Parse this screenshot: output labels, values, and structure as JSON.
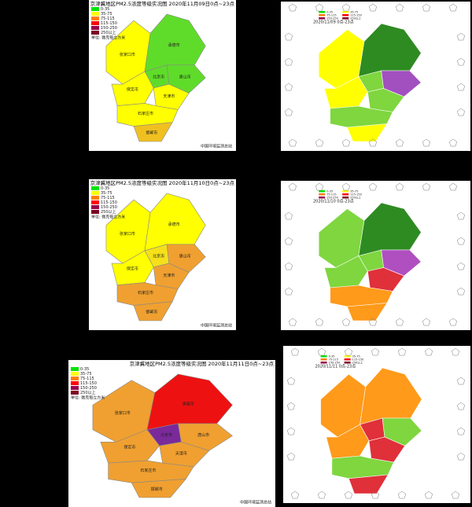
{
  "legend": [
    {
      "label": "0-35",
      "color": "#00e400"
    },
    {
      "label": "35-75",
      "color": "#ffff00"
    },
    {
      "label": "75-115",
      "color": "#ff7e00"
    },
    {
      "label": "115-150",
      "color": "#ff0000"
    },
    {
      "label": "150-250",
      "color": "#99004c"
    },
    {
      "label": "250以上",
      "color": "#7e0023"
    }
  ],
  "unit": "单位: 微克每立方米",
  "credit": "中国环境监测总站",
  "region_labels": [
    "张家口市",
    "承德市",
    "北京市",
    "唐山市",
    "保定市",
    "天津市",
    "石家庄市",
    "邯郸市"
  ],
  "panels": [
    {
      "kind": "level",
      "title": "京津冀地区PM2.5浓度等级实况图 2020年11月09日0点~23点",
      "region_colors": [
        "#ffff00",
        "#5fdc2a",
        "#5fdc2a",
        "#5fdc2a",
        "#ffff00",
        "#ffff00",
        "#ffff00",
        "#f0c020"
      ]
    },
    {
      "kind": "model",
      "caption": "2020/11/09 0点-23点",
      "region_colors": [
        "#ffff00",
        "#2e8b22",
        "#7fd63f",
        "#a24fc0",
        "#ffff00",
        "#7fd63f",
        "#7fd63f",
        "#ffff00"
      ]
    },
    {
      "kind": "level",
      "title": "京津冀地区PM2.5浓度等级实况图 2020年11月10日0点~23点",
      "region_colors": [
        "#ffff00",
        "#ffff00",
        "#f5e01a",
        "#f0a030",
        "#ffff00",
        "#f0a030",
        "#f0a030",
        "#f0a030"
      ]
    },
    {
      "kind": "model",
      "caption": "2020/11/10 0点-23点",
      "region_colors": [
        "#7fd63f",
        "#2e8b22",
        "#7fd63f",
        "#b04fc0",
        "#7fd63f",
        "#e0303a",
        "#ff9a1a",
        "#ff9a1a"
      ]
    },
    {
      "kind": "level",
      "title": "京津冀地区PM2.5浓度等级实况图 2020年11月11日0点~23点",
      "region_colors": [
        "#f0a030",
        "#ee1111",
        "#7a2a9a",
        "#f0a030",
        "#f0a030",
        "#f0a030",
        "#f0a030",
        "#f0a030"
      ]
    },
    {
      "kind": "model",
      "caption": "2020/11/11 0点-23点",
      "region_colors": [
        "#ff9a1a",
        "#ff9a1a",
        "#e0303a",
        "#7fd63f",
        "#ff9a1a",
        "#e0303a",
        "#7fd63f",
        "#e0303a"
      ]
    }
  ]
}
